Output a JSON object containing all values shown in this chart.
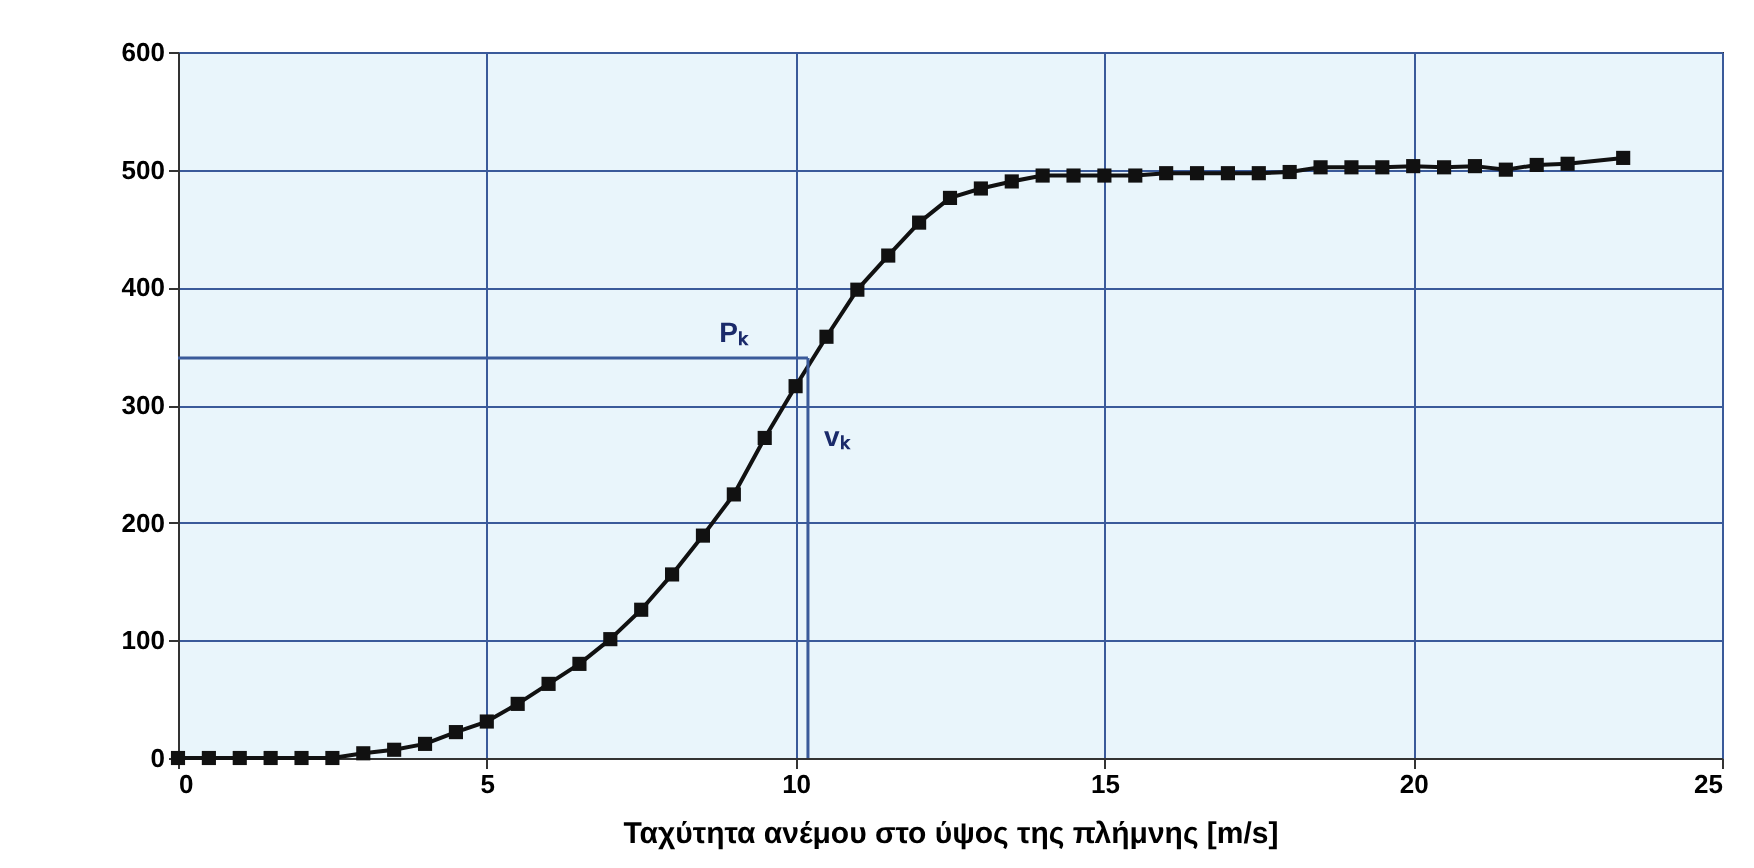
{
  "chart_data": {
    "type": "line",
    "xlabel": "Ταχύτητα ανέμου στο ύψος της πλήμνης [m/s]",
    "x": [
      0,
      0.5,
      1,
      1.5,
      2,
      2.5,
      3,
      3.5,
      4,
      4.5,
      5,
      5.5,
      6,
      6.5,
      7,
      7.5,
      8,
      8.5,
      9,
      9.5,
      10,
      10.5,
      11,
      11.5,
      12,
      12.5,
      13,
      13.5,
      14,
      14.5,
      15,
      15.5,
      16,
      16.5,
      17,
      17.5,
      18,
      18.5,
      19,
      19.5,
      20,
      20.5,
      21,
      21.5,
      22,
      22.5,
      23.4
    ],
    "series": [
      {
        "color": "#111111",
        "values": [
          0,
          0,
          0,
          0,
          0,
          0,
          4,
          7,
          12,
          22,
          31,
          46,
          63,
          80,
          101,
          126,
          156,
          189,
          224,
          272,
          316,
          358,
          398,
          427,
          455,
          476,
          484,
          490,
          495,
          495,
          495,
          495,
          497,
          497,
          497,
          497,
          498,
          502,
          502,
          502,
          503,
          502,
          503,
          500,
          504,
          505,
          510
        ]
      }
    ],
    "xlim": [
      0,
      25
    ],
    "ylim": [
      0,
      600
    ],
    "xticks": [
      0,
      5,
      10,
      15,
      20,
      25
    ],
    "yticks": [
      0,
      100,
      200,
      300,
      400,
      500,
      600
    ],
    "grid": true,
    "marker": "square",
    "line_style": "solid",
    "ref_lines": [
      {
        "axis": "y",
        "value": 340,
        "label": "Pₖ",
        "color": "#3a5a9a"
      },
      {
        "axis": "x",
        "value": 10.2,
        "label": "vₖ",
        "color": "#3a5a9a"
      }
    ]
  }
}
